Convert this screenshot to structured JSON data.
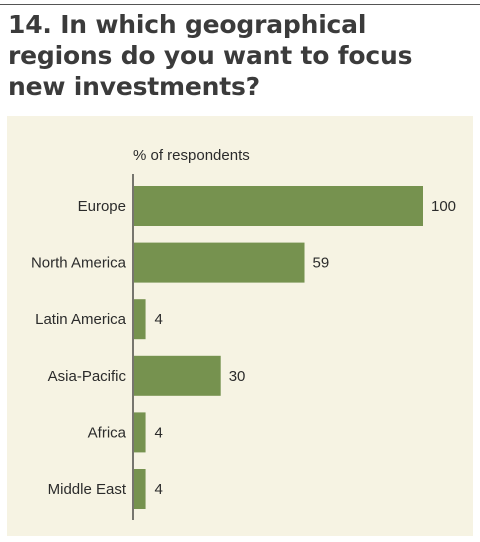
{
  "title": "14. In which geographical regions do you want to focus new investments?",
  "colors": {
    "bar": "#76924f",
    "panel": "#f6f3e3",
    "axis": "#222222",
    "text": "#2b2b2b"
  },
  "chart_data": {
    "type": "bar",
    "orientation": "horizontal",
    "title": "14. In which geographical regions do you want to focus new investments?",
    "axis_label": "% of respondents",
    "categories": [
      "Europe",
      "North America",
      "Latin America",
      "Asia-Pacific",
      "Africa",
      "Middle East"
    ],
    "values": [
      100,
      59,
      4,
      30,
      4,
      4
    ],
    "data_labels": [
      "100",
      "59",
      "4",
      "30",
      "4",
      "4"
    ],
    "xlim": [
      0,
      100
    ],
    "grid": false,
    "legend": "none"
  }
}
